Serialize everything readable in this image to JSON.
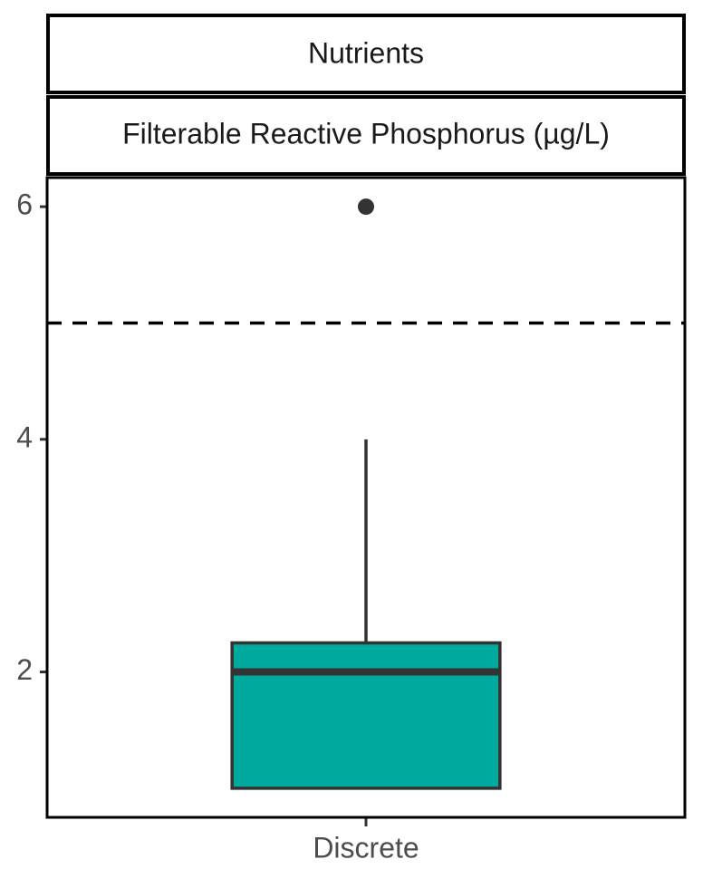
{
  "chart_data": {
    "type": "box",
    "facet_labels": [
      "Nutrients",
      "Filterable Reactive Phosphorus (µg/L)"
    ],
    "categories": [
      "Discrete"
    ],
    "series": [
      {
        "color": "#00a99d",
        "whisker_low": [
          1
        ],
        "q1": [
          1
        ],
        "median": [
          2
        ],
        "q3": [
          2.25
        ],
        "whisker_high": [
          4
        ],
        "outliers": [
          [
            6
          ]
        ]
      }
    ],
    "hline": 5,
    "ylim": [
      0.75,
      6.25
    ],
    "yticks": [
      2,
      4,
      6
    ]
  }
}
